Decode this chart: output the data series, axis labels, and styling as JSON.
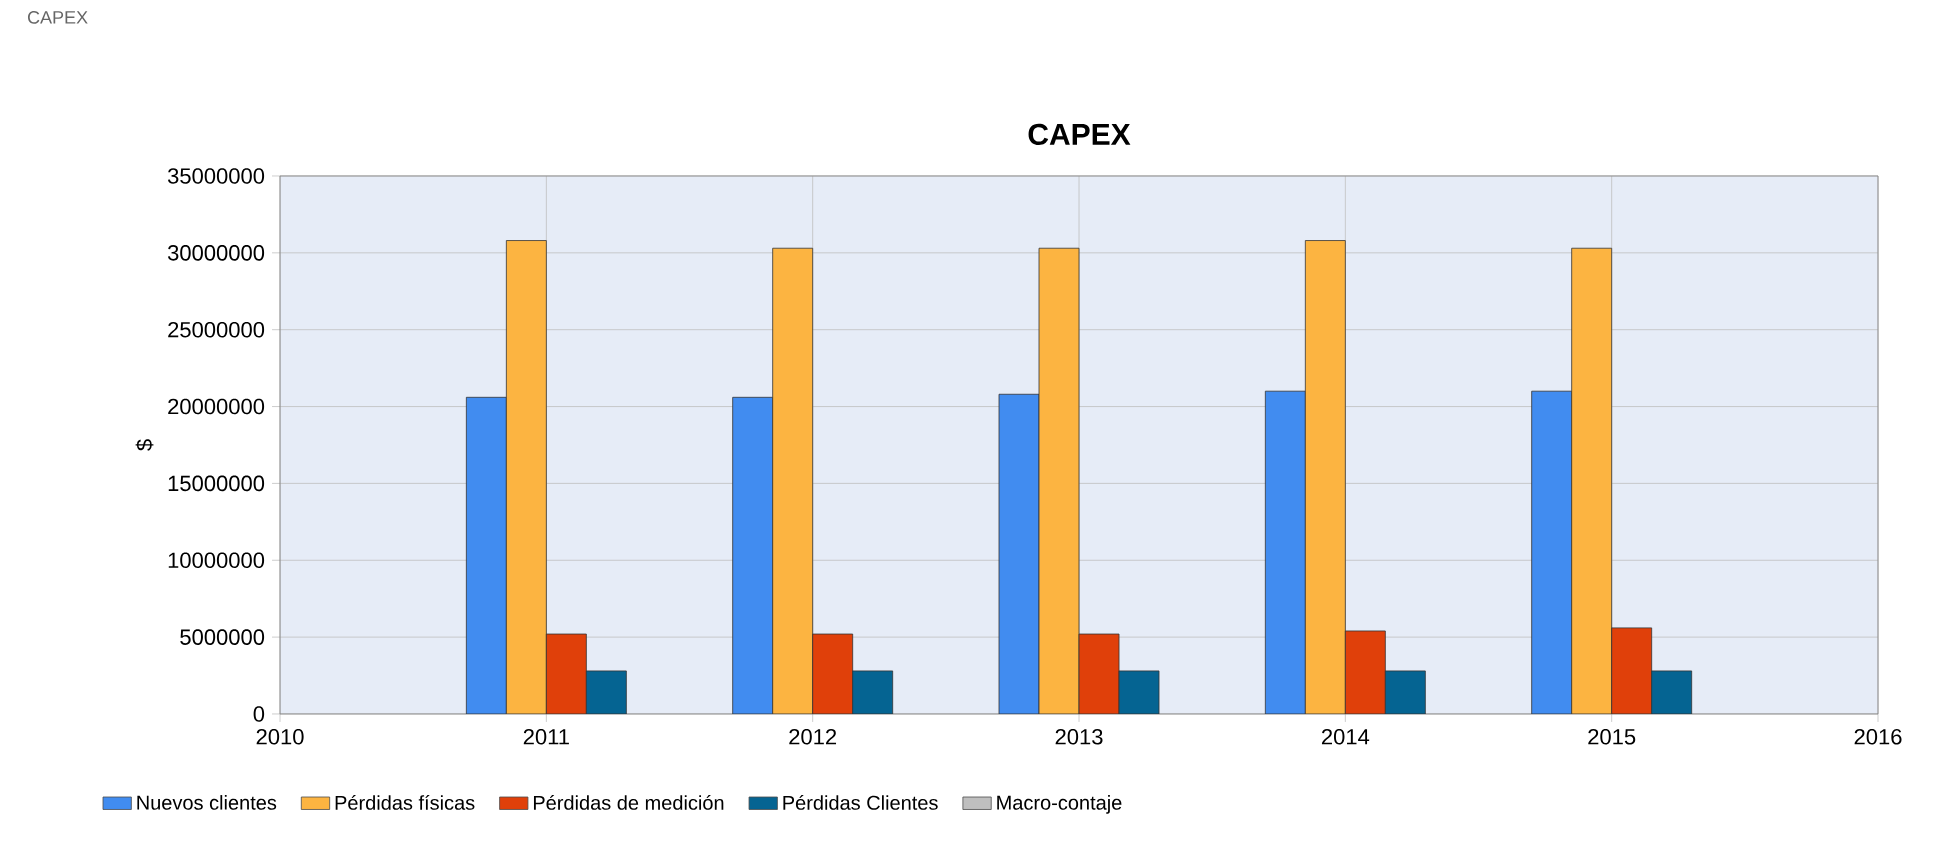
{
  "chart_data": {
    "type": "bar",
    "title": "CAPEX",
    "ylabel": "$",
    "annotations": [
      "CAPEX"
    ],
    "x": [
      2011,
      2012,
      2013,
      2014,
      2015
    ],
    "series": [
      {
        "name": "Nuevos clientes",
        "color": "#418cf0",
        "values": [
          20600000,
          20600000,
          20800000,
          21000000,
          21000000
        ]
      },
      {
        "name": "Pérdidas físicas",
        "color": "#fcb441",
        "values": [
          30800000,
          30300000,
          30300000,
          30800000,
          30300000
        ]
      },
      {
        "name": "Pérdidas de medición",
        "color": "#e0400a",
        "values": [
          5200000,
          5200000,
          5200000,
          5400000,
          5600000
        ]
      },
      {
        "name": "Pérdidas Clientes",
        "color": "#056492",
        "values": [
          2800000,
          2800000,
          2800000,
          2800000,
          2800000
        ]
      },
      {
        "name": "Macro-contaje",
        "color": "#bfbfbf",
        "values": [
          null,
          null,
          null,
          null,
          null
        ]
      }
    ],
    "xlim": [
      2010,
      2016
    ],
    "xticks": [
      2010,
      2011,
      2012,
      2013,
      2014,
      2015,
      2016
    ],
    "ylim": [
      0,
      35000000
    ],
    "yticks": [
      0,
      5000000,
      10000000,
      15000000,
      20000000,
      25000000,
      30000000,
      35000000
    ],
    "grid": true,
    "legend": "bottom"
  }
}
